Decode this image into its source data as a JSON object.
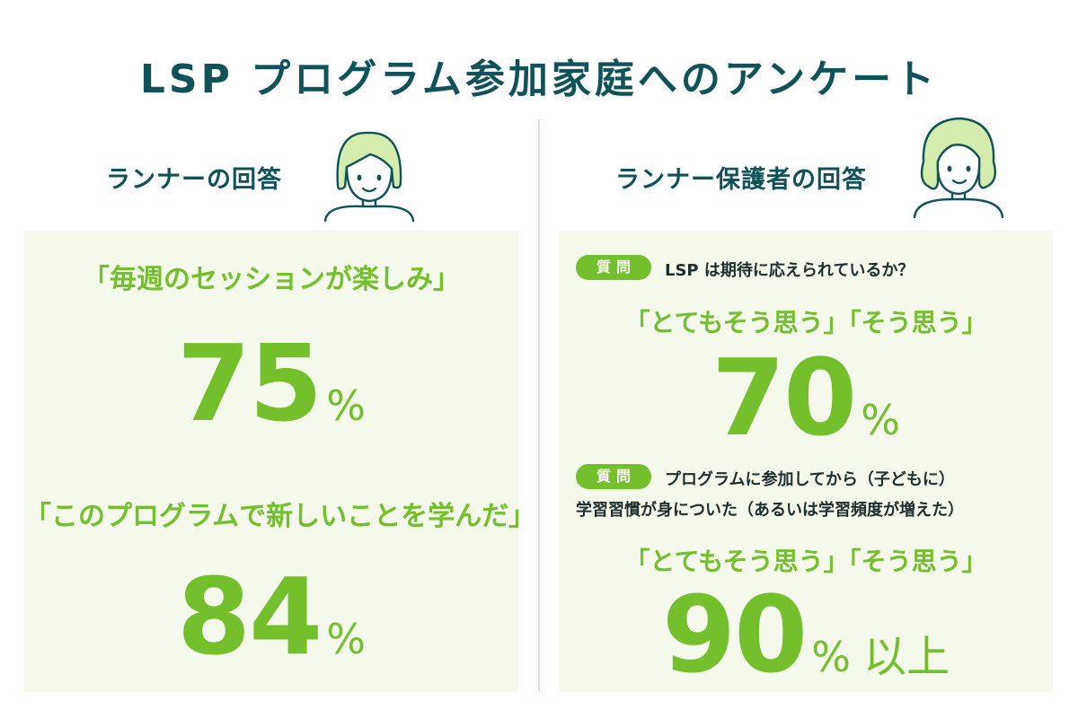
{
  "title": "LSP プログラム参加家庭へのアンケート",
  "left": {
    "heading": "ランナーの回答",
    "items": [
      {
        "quote": "「毎週のセッションが楽しみ」",
        "value": "75",
        "unit": "%"
      },
      {
        "quote": "「このプログラムで新しいことを学んだ」",
        "value": "84",
        "unit": "%"
      }
    ]
  },
  "right": {
    "heading": "ランナー保護者の回答",
    "items": [
      {
        "tag": "質問",
        "question_lines": [
          "LSP は期待に応えられているか？"
        ],
        "answer": "「とてもそう思う」「そう思う」",
        "value": "70",
        "unit": "%",
        "suffix": ""
      },
      {
        "tag": "質問",
        "question_lines": [
          "プログラムに参加してから（子どもに）",
          "学習習慣が身についた（あるいは学習頻度が増えた）"
        ],
        "answer": "「とてもそう思う」「そう思う」",
        "value": "90",
        "unit": "%",
        "suffix": "以上"
      }
    ]
  },
  "colors": {
    "heading": "#0f5259",
    "accent": "#73bf2c",
    "panel": "#f5f9ec",
    "avatar_hair": "#d4ecac",
    "avatar_line": "#0f5259"
  },
  "icons": [
    "runner-avatar-icon",
    "guardian-avatar-icon"
  ]
}
